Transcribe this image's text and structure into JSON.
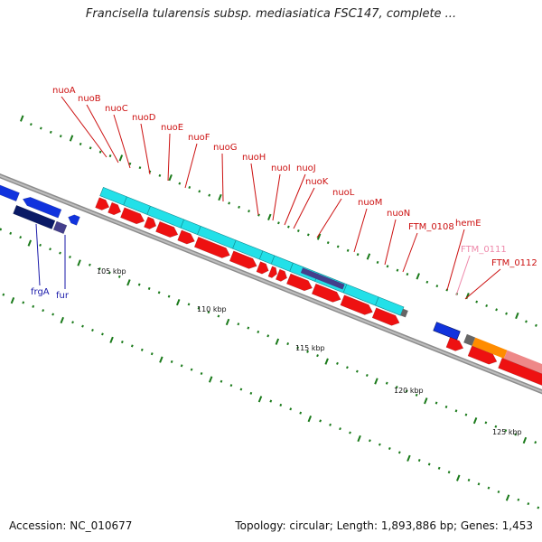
{
  "title": "Francisella tularensis subsp. mediasiatica FSC147, complete ...",
  "footer": {
    "accession": "Accession: NC_010677",
    "summary": "Topology: circular; Length: 1,893,886 bp; Genes: 1,453"
  },
  "colors": {
    "backbone": "#8c8c8c",
    "forward_gene": "#ee1111",
    "reverse_gene": "#1133dd",
    "reverse_dark": "#0a1a66",
    "reverse_slate": "#443f8c",
    "cds_bar": "#22e0e8",
    "tick": "#1a7a1a",
    "nuo_label": "#cc1111",
    "rev_label": "#1a1aaa",
    "pink_label": "#ee88aa",
    "orange": "#ff8c00",
    "salmon": "#ee8888",
    "gray_gene": "#666666"
  },
  "kbp_labels": [
    "105 kbp",
    "110 kbp",
    "115 kbp",
    "120 kbp",
    "125 kbp"
  ],
  "gene_labels": [
    {
      "text": "nuoA",
      "color": "nuo"
    },
    {
      "text": "nuoB",
      "color": "nuo"
    },
    {
      "text": "nuoC",
      "color": "nuo"
    },
    {
      "text": "nuoD",
      "color": "nuo"
    },
    {
      "text": "nuoE",
      "color": "nuo"
    },
    {
      "text": "nuoF",
      "color": "nuo"
    },
    {
      "text": "nuoG",
      "color": "nuo"
    },
    {
      "text": "nuoH",
      "color": "nuo"
    },
    {
      "text": "nuoI",
      "color": "nuo"
    },
    {
      "text": "nuoJ",
      "color": "nuo"
    },
    {
      "text": "nuoK",
      "color": "nuo"
    },
    {
      "text": "nuoL",
      "color": "nuo"
    },
    {
      "text": "nuoM",
      "color": "nuo"
    },
    {
      "text": "nuoN",
      "color": "nuo"
    },
    {
      "text": "FTM_0108",
      "color": "nuo"
    },
    {
      "text": "hemE",
      "color": "nuo"
    },
    {
      "text": "FTM_0111",
      "color": "pink"
    },
    {
      "text": "FTM_0112",
      "color": "nuo"
    },
    {
      "text": "frgA",
      "color": "rev"
    },
    {
      "text": "fur",
      "color": "rev"
    }
  ]
}
